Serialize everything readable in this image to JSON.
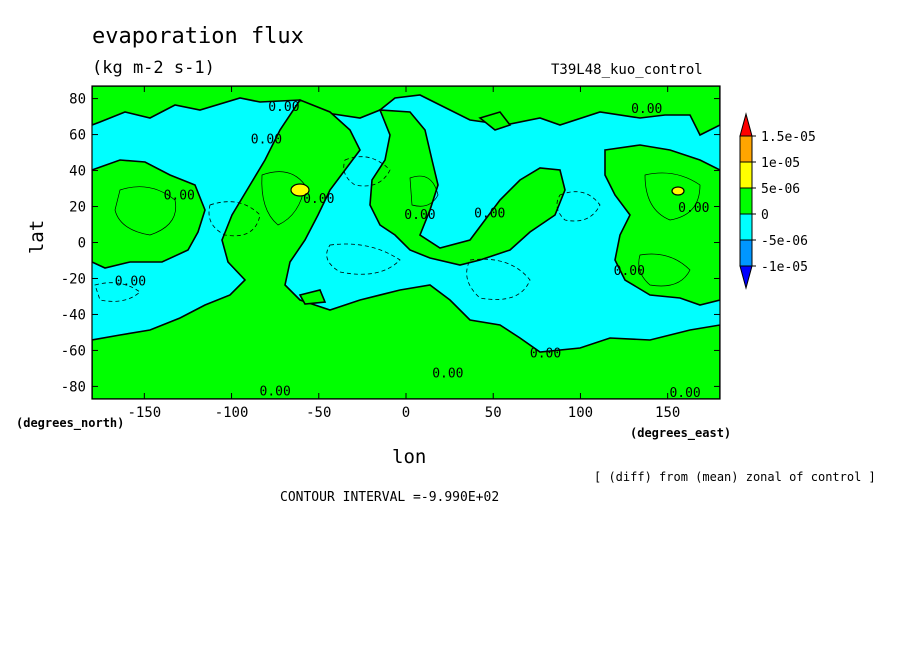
{
  "title": "evaporation flux",
  "units": "(kg m-2 s-1)",
  "run_id": "T39L48_kuo_control",
  "x_unit": "(degrees_east)",
  "y_unit": "(degrees_north)",
  "note": "[ (diff) from (mean) zonal of control ]",
  "contour_interval": "CONTOUR INTERVAL =-9.990E+02",
  "chart_data": {
    "type": "heatmap",
    "xlabel": "lon",
    "ylabel": "lat",
    "xlim": [
      -180,
      180
    ],
    "ylim": [
      -87,
      87
    ],
    "x_ticks": [
      -150,
      -100,
      -50,
      0,
      50,
      100,
      150
    ],
    "x_tick_labels": [
      "-150",
      "-100",
      "-50",
      "0",
      "50",
      "100",
      "150"
    ],
    "y_ticks": [
      80,
      60,
      40,
      20,
      0,
      -20,
      -40,
      -60,
      -80
    ],
    "y_tick_labels": [
      "80",
      "60",
      "40",
      "20",
      "0",
      "-20",
      "-40",
      "-60",
      "-80"
    ],
    "contour_labels": [
      {
        "text": "0.00",
        "x": -70,
        "y": 73
      },
      {
        "text": "0.00",
        "x": -80,
        "y": 55
      },
      {
        "text": "0.00",
        "x": -130,
        "y": 24
      },
      {
        "text": "0.00",
        "x": -50,
        "y": 22
      },
      {
        "text": "0.00",
        "x": 8,
        "y": 13
      },
      {
        "text": "0.00",
        "x": 48,
        "y": 14
      },
      {
        "text": "0.00",
        "x": 138,
        "y": 72
      },
      {
        "text": "0.00",
        "x": 165,
        "y": 17
      },
      {
        "text": "0.00",
        "x": -158,
        "y": -24
      },
      {
        "text": "0.00",
        "x": 128,
        "y": -18
      },
      {
        "text": "0.00",
        "x": 80,
        "y": -64
      },
      {
        "text": "0.00",
        "x": 24,
        "y": -75
      },
      {
        "text": "0.00",
        "x": -75,
        "y": -85
      },
      {
        "text": "0.00",
        "x": 160,
        "y": -86
      }
    ],
    "colorbar": {
      "levels": [
        "1.5e-05",
        "1e-05",
        "5e-06",
        "0",
        "-5e-06",
        "-1e-05"
      ],
      "colors": [
        "#ff0000",
        "#ffa500",
        "#ffff00",
        "#00ff00",
        "#00ffff",
        "#0096ff",
        "#0000ff"
      ]
    }
  }
}
